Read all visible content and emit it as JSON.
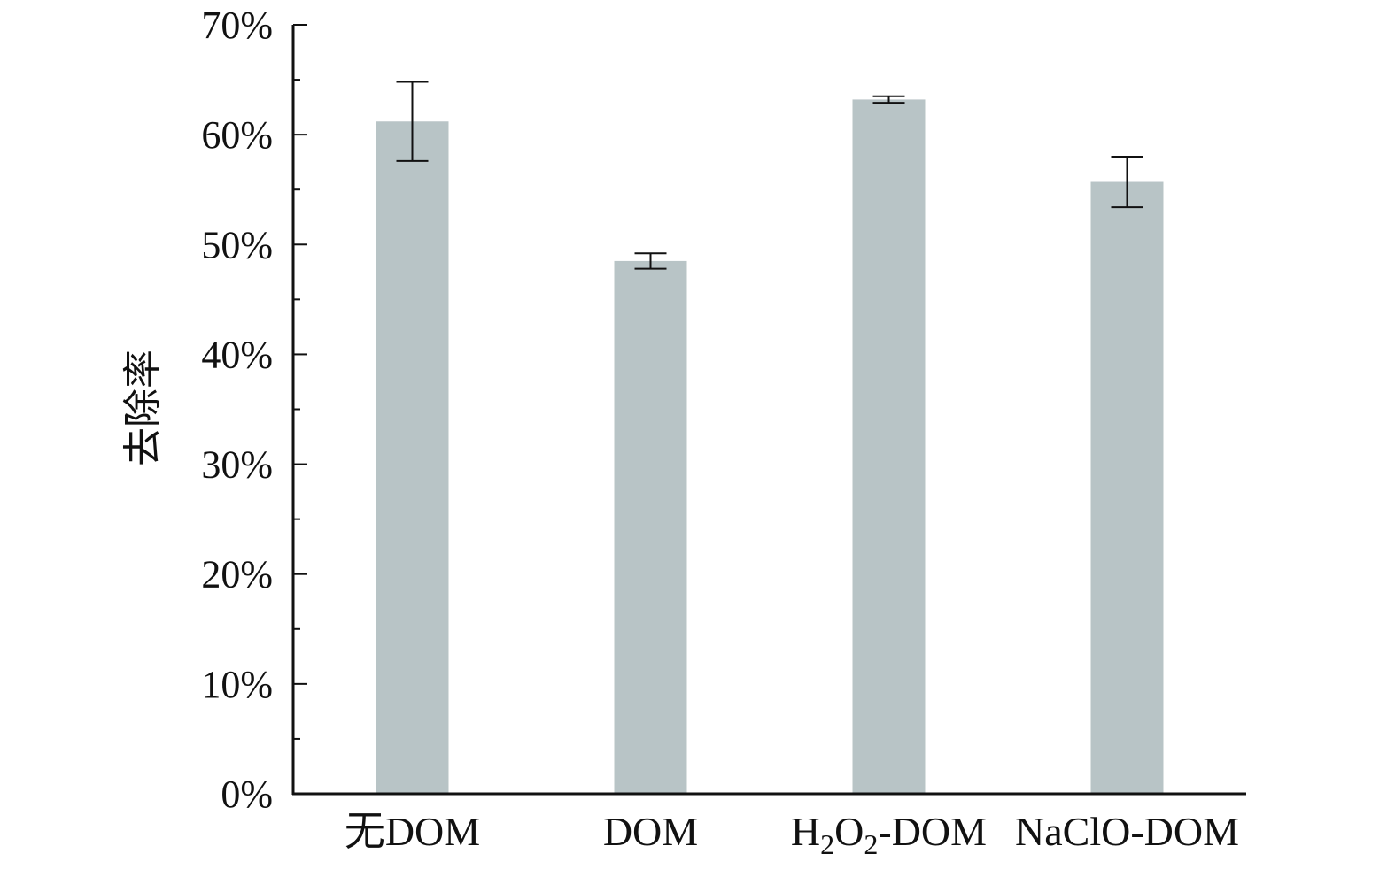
{
  "chart_data": {
    "type": "bar",
    "categories": [
      "无DOM",
      "DOM",
      "H2O2-DOM",
      "NaClO-DOM"
    ],
    "category_labels": [
      {
        "parts": [
          {
            "text": "无DOM"
          }
        ]
      },
      {
        "parts": [
          {
            "text": "DOM"
          }
        ]
      },
      {
        "parts": [
          {
            "text": "H"
          },
          {
            "text": "2",
            "sub": true
          },
          {
            "text": "O"
          },
          {
            "text": "2",
            "sub": true
          },
          {
            "text": "-DOM"
          }
        ]
      },
      {
        "parts": [
          {
            "text": "NaClO-DOM"
          }
        ]
      }
    ],
    "series": [
      {
        "values": [
          61.2,
          48.5,
          63.2,
          55.7
        ],
        "error": [
          3.6,
          0.7,
          0.3,
          2.3
        ]
      }
    ],
    "ylabel": "去除率",
    "xlabel": "",
    "ylim": [
      0,
      70
    ],
    "yticks": [
      0,
      10,
      20,
      30,
      40,
      50,
      60,
      70
    ],
    "ytick_labels": [
      "0%",
      "10%",
      "20%",
      "30%",
      "40%",
      "50%",
      "60%",
      "70%"
    ],
    "grid": false,
    "legend": "none"
  },
  "colors": {
    "bar": "#b8c4c6",
    "axis": "#111111",
    "error_bar": "#111111"
  }
}
